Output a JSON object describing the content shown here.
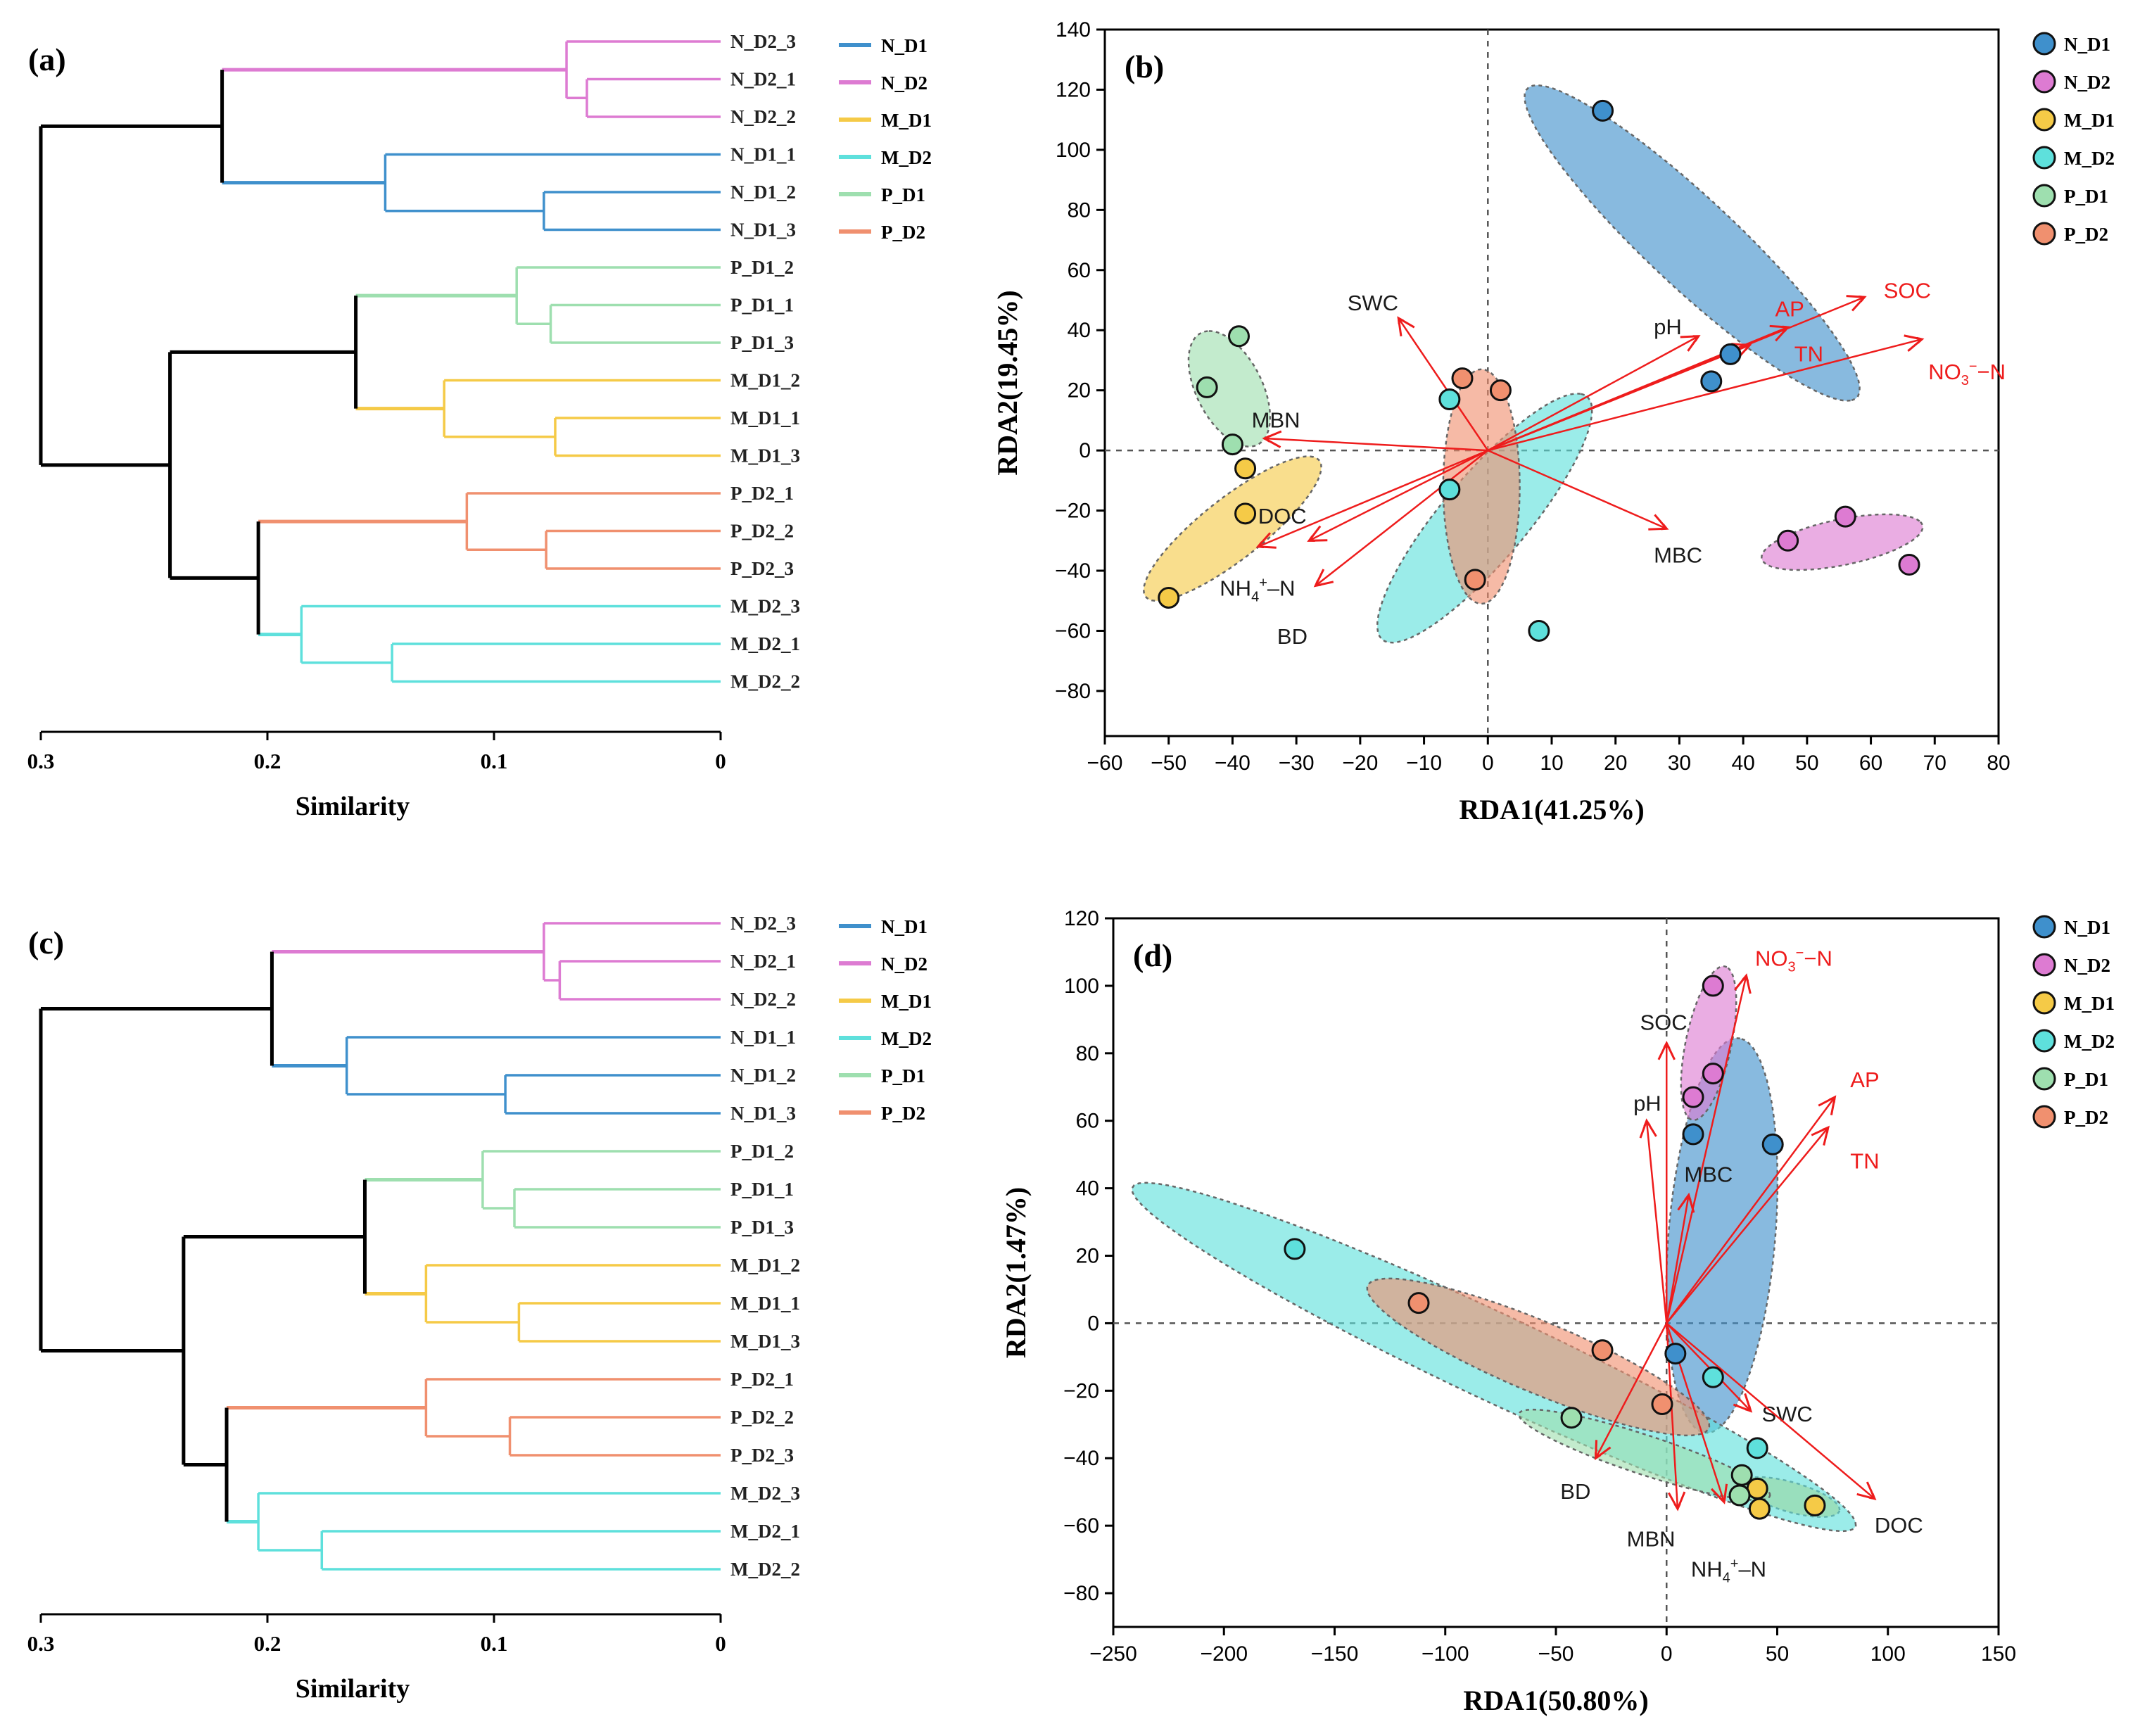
{
  "chart_data": [
    {
      "panel": "(a)",
      "type": "dendrogram",
      "xlabel": "Similarity",
      "x_ticks": [
        "0.3",
        "0.2",
        "0.1",
        "0"
      ],
      "xlim": [
        0.3,
        0
      ],
      "leaves": [
        "N_D2_3",
        "N_D2_1",
        "N_D2_2",
        "N_D1_1",
        "N_D1_2",
        "N_D1_3",
        "P_D1_2",
        "P_D1_1",
        "P_D1_3",
        "M_D1_2",
        "M_D1_1",
        "M_D1_3",
        "P_D2_1",
        "P_D2_2",
        "P_D2_3",
        "M_D2_3",
        "M_D2_1",
        "M_D2_2"
      ],
      "merges": [
        {
          "g": "N_D2",
          "a": 1,
          "b": 2,
          "h": 0.059,
          "id": "n1"
        },
        {
          "g": "N_D2",
          "a": 0,
          "b": "n1",
          "h": 0.068,
          "id": "n2"
        },
        {
          "g": "N_D1",
          "a": 4,
          "b": 5,
          "h": 0.078,
          "id": "n3"
        },
        {
          "g": "N_D1",
          "a": 3,
          "b": "n3",
          "h": 0.148,
          "id": "n4"
        },
        {
          "g": "root",
          "a": "n2",
          "b": "n4",
          "h": 0.22,
          "id": "n5"
        },
        {
          "g": "P_D1",
          "a": 7,
          "b": 8,
          "h": 0.075,
          "id": "n6"
        },
        {
          "g": "P_D1",
          "a": 6,
          "b": "n6",
          "h": 0.09,
          "id": "n7"
        },
        {
          "g": "M_D1",
          "a": 10,
          "b": 11,
          "h": 0.073,
          "id": "n8"
        },
        {
          "g": "M_D1",
          "a": 9,
          "b": "n8",
          "h": 0.122,
          "id": "n9"
        },
        {
          "g": "root",
          "a": "n7",
          "b": "n9",
          "h": 0.161,
          "id": "n10"
        },
        {
          "g": "P_D2",
          "a": 13,
          "b": 14,
          "h": 0.077,
          "id": "n11"
        },
        {
          "g": "P_D2",
          "a": 12,
          "b": "n11",
          "h": 0.112,
          "id": "n12"
        },
        {
          "g": "M_D2",
          "a": 16,
          "b": 17,
          "h": 0.145,
          "id": "n13"
        },
        {
          "g": "M_D2",
          "a": 15,
          "b": "n13",
          "h": 0.185,
          "id": "n14"
        },
        {
          "g": "root",
          "a": "n12",
          "b": "n14",
          "h": 0.204,
          "id": "n15"
        },
        {
          "g": "root",
          "a": "n10",
          "b": "n15",
          "h": 0.243,
          "id": "n16"
        },
        {
          "g": "root",
          "a": "n5",
          "b": "n16",
          "h": 0.3,
          "id": "n17"
        }
      ],
      "legend": [
        "N_D1",
        "N_D2",
        "M_D1",
        "M_D2",
        "P_D1",
        "P_D2"
      ]
    },
    {
      "panel": "(b)",
      "type": "scatter",
      "xlabel": "RDA1(41.25%)",
      "ylabel": "RDA2(19.45%)",
      "xlim": [
        -60,
        80
      ],
      "ylim": [
        -95,
        140
      ],
      "x_ticks": [
        -60,
        -50,
        -40,
        -30,
        -20,
        -10,
        0,
        10,
        20,
        30,
        40,
        50,
        60,
        70,
        80
      ],
      "y_ticks": [
        -80,
        -60,
        -40,
        -20,
        0,
        20,
        40,
        60,
        80,
        100,
        120,
        140
      ],
      "series": [
        {
          "name": "N_D1",
          "points": [
            [
              18,
              113
            ],
            [
              38,
              32
            ],
            [
              35,
              23
            ]
          ]
        },
        {
          "name": "N_D2",
          "points": [
            [
              47,
              -30
            ],
            [
              56,
              -22
            ],
            [
              66,
              -38
            ]
          ]
        },
        {
          "name": "M_D1",
          "points": [
            [
              -38,
              -6
            ],
            [
              -38,
              -21
            ],
            [
              -50,
              -49
            ]
          ]
        },
        {
          "name": "M_D2",
          "points": [
            [
              -6,
              17
            ],
            [
              -6,
              -13
            ],
            [
              8,
              -60
            ]
          ]
        },
        {
          "name": "P_D1",
          "points": [
            [
              -44,
              21
            ],
            [
              -39,
              38
            ],
            [
              -40,
              2
            ]
          ]
        },
        {
          "name": "P_D2",
          "points": [
            [
              -4,
              24
            ],
            [
              2,
              20
            ],
            [
              -2,
              -43
            ]
          ]
        }
      ],
      "ellipses": [
        {
          "group": "N_D1",
          "cx": 32,
          "cy": 69,
          "rx": 58,
          "ry": 9,
          "angle": -64.5
        },
        {
          "group": "N_D2",
          "cx": 55.5,
          "cy": -30.5,
          "rx": 14,
          "ry": 7,
          "angle": 30
        },
        {
          "group": "M_D1",
          "cx": -40,
          "cy": -26,
          "rx": 27,
          "ry": 6.5,
          "angle": 62
        },
        {
          "group": "M_D2",
          "cx": -0.5,
          "cy": -22.5,
          "rx": 44,
          "ry": 8,
          "angle": 70
        },
        {
          "group": "P_D1",
          "cx": -40.5,
          "cy": 20.5,
          "rx": 19.5,
          "ry": 5.5,
          "angle": 100
        },
        {
          "group": "P_D2",
          "cx": -1,
          "cy": -12,
          "rx": 39,
          "ry": 6,
          "angle": 90
        }
      ],
      "vectors": [
        {
          "name": "pH",
          "label": "pH",
          "x": 33,
          "y": 38,
          "lx": 26,
          "ly": 41,
          "color": "black"
        },
        {
          "name": "AP",
          "label": "AP",
          "x": 47,
          "y": 41,
          "lx": 45,
          "ly": 47,
          "color": "red"
        },
        {
          "name": "SOC",
          "label": "SOC",
          "x": 59,
          "y": 51,
          "lx": 62,
          "ly": 53,
          "color": "red"
        },
        {
          "name": "TN",
          "label": "TN",
          "x": 41,
          "y": 35,
          "lx": 48,
          "ly": 32,
          "color": "red"
        },
        {
          "name": "NO3",
          "label": "NO",
          "sub": "3",
          "sup": "−",
          "tail": "−N",
          "x": 68,
          "y": 37,
          "lx": 69,
          "ly": 26,
          "color": "red"
        },
        {
          "name": "SWC",
          "label": "SWC",
          "x": -14,
          "y": 44,
          "lx": -22,
          "ly": 49,
          "color": "black"
        },
        {
          "name": "MBN",
          "label": "MBN",
          "x": -35,
          "y": 4,
          "lx": -37,
          "ly": 10,
          "color": "black"
        },
        {
          "name": "MBC",
          "label": "MBC",
          "x": 28,
          "y": -26,
          "lx": 26,
          "ly": -35,
          "color": "black"
        },
        {
          "name": "DOC",
          "label": "DOC",
          "x": -36,
          "y": -32,
          "lx": -36,
          "ly": -22,
          "color": "black"
        },
        {
          "name": "NH4",
          "label": "NH",
          "sub": "4",
          "sup": "+",
          "tail": "–N",
          "x": -28,
          "y": -30,
          "lx": -42,
          "ly": -46,
          "color": "black"
        },
        {
          "name": "BD",
          "label": "BD",
          "x": -27,
          "y": -45,
          "lx": -33,
          "ly": -62,
          "color": "black"
        }
      ],
      "legend": [
        "N_D1",
        "N_D2",
        "M_D1",
        "M_D2",
        "P_D1",
        "P_D2"
      ]
    },
    {
      "panel": "(c)",
      "type": "dendrogram",
      "xlabel": "Similarity",
      "x_ticks": [
        "0.3",
        "0.2",
        "0.1",
        "0"
      ],
      "xlim": [
        0.3,
        0
      ],
      "leaves": [
        "N_D2_3",
        "N_D2_1",
        "N_D2_2",
        "N_D1_1",
        "N_D1_2",
        "N_D1_3",
        "P_D1_2",
        "P_D1_1",
        "P_D1_3",
        "M_D1_2",
        "M_D1_1",
        "M_D1_3",
        "P_D2_1",
        "P_D2_2",
        "P_D2_3",
        "M_D2_3",
        "M_D2_1",
        "M_D2_2"
      ],
      "merges": [
        {
          "g": "N_D2",
          "a": 1,
          "b": 2,
          "h": 0.071,
          "id": "n1"
        },
        {
          "g": "N_D2",
          "a": 0,
          "b": "n1",
          "h": 0.078,
          "id": "n2"
        },
        {
          "g": "N_D1",
          "a": 4,
          "b": 5,
          "h": 0.095,
          "id": "n3"
        },
        {
          "g": "N_D1",
          "a": 3,
          "b": "n3",
          "h": 0.165,
          "id": "n4"
        },
        {
          "g": "root",
          "a": "n2",
          "b": "n4",
          "h": 0.198,
          "id": "n5"
        },
        {
          "g": "P_D1",
          "a": 7,
          "b": 8,
          "h": 0.091,
          "id": "n6"
        },
        {
          "g": "P_D1",
          "a": 6,
          "b": "n6",
          "h": 0.105,
          "id": "n7"
        },
        {
          "g": "M_D1",
          "a": 10,
          "b": 11,
          "h": 0.089,
          "id": "n8"
        },
        {
          "g": "M_D1",
          "a": 9,
          "b": "n8",
          "h": 0.13,
          "id": "n9"
        },
        {
          "g": "root",
          "a": "n7",
          "b": "n9",
          "h": 0.157,
          "id": "n10"
        },
        {
          "g": "P_D2",
          "a": 13,
          "b": 14,
          "h": 0.093,
          "id": "n11"
        },
        {
          "g": "P_D2",
          "a": 12,
          "b": "n11",
          "h": 0.13,
          "id": "n12"
        },
        {
          "g": "M_D2",
          "a": 16,
          "b": 17,
          "h": 0.176,
          "id": "n13"
        },
        {
          "g": "M_D2",
          "a": 15,
          "b": "n13",
          "h": 0.204,
          "id": "n14"
        },
        {
          "g": "root",
          "a": "n12",
          "b": "n14",
          "h": 0.218,
          "id": "n15"
        },
        {
          "g": "root",
          "a": "n10",
          "b": "n15",
          "h": 0.237,
          "id": "n16"
        },
        {
          "g": "root",
          "a": "n5",
          "b": "n16",
          "h": 0.3,
          "id": "n17"
        }
      ],
      "legend": [
        "N_D1",
        "N_D2",
        "M_D1",
        "M_D2",
        "P_D1",
        "P_D2"
      ]
    },
    {
      "panel": "(d)",
      "type": "scatter",
      "xlabel": "RDA1(50.80%)",
      "ylabel": "RDA2(1.47%)",
      "xlim": [
        -250,
        150
      ],
      "ylim": [
        -90,
        120
      ],
      "x_ticks": [
        -250,
        -200,
        -150,
        -100,
        -50,
        0,
        50,
        100,
        150
      ],
      "y_ticks": [
        -80,
        -60,
        -40,
        -20,
        0,
        20,
        40,
        60,
        80,
        100,
        120
      ],
      "series": [
        {
          "name": "N_D1",
          "points": [
            [
              12,
              56
            ],
            [
              48,
              53
            ],
            [
              4,
              -9
            ]
          ]
        },
        {
          "name": "N_D2",
          "points": [
            [
              21,
              100
            ],
            [
              12,
              67
            ],
            [
              21,
              74
            ]
          ]
        },
        {
          "name": "M_D1",
          "points": [
            [
              41,
              -49
            ],
            [
              42,
              -55
            ],
            [
              67,
              -54
            ]
          ]
        },
        {
          "name": "M_D2",
          "points": [
            [
              -168,
              22
            ],
            [
              21,
              -16
            ],
            [
              41,
              -37
            ]
          ]
        },
        {
          "name": "P_D1",
          "points": [
            [
              -43,
              -28
            ],
            [
              34,
              -45
            ],
            [
              33,
              -51
            ]
          ]
        },
        {
          "name": "P_D2",
          "points": [
            [
              -112,
              6
            ],
            [
              -29,
              -8
            ],
            [
              -2,
              -24
            ]
          ]
        }
      ],
      "ellipses": [
        {
          "group": "N_D1",
          "cx": 25,
          "cy": 26,
          "rx": 59,
          "ry": 24,
          "angle": 82
        },
        {
          "group": "N_D2",
          "cx": 19,
          "cy": 83,
          "rx": 24,
          "ry": 10,
          "angle": 70
        },
        {
          "group": "M_D1",
          "cx": 56,
          "cy": -51.5,
          "rx": 22.5,
          "ry": 4.5,
          "angle": -10
        },
        {
          "group": "M_D2",
          "cx": -78,
          "cy": -10,
          "rx": 171,
          "ry": 13.5,
          "angle": -17
        },
        {
          "group": "P_D1",
          "cx": -10,
          "cy": -39,
          "rx": 58,
          "ry": 6,
          "angle": -12
        },
        {
          "group": "P_D2",
          "cx": -58,
          "cy": -10,
          "rx": 80,
          "ry": 11,
          "angle": -15
        }
      ],
      "vectors": [
        {
          "name": "NO3",
          "label": "NO",
          "sub": "3",
          "sup": "−",
          "tail": "−N",
          "x": 36,
          "y": 103,
          "lx": 40,
          "ly": 108,
          "color": "red"
        },
        {
          "name": "SOC",
          "label": "SOC",
          "x": 0,
          "y": 83,
          "lx": -12,
          "ly": 89,
          "color": "black"
        },
        {
          "name": "pH",
          "label": "pH",
          "x": -9,
          "y": 60,
          "lx": -15,
          "ly": 65,
          "color": "black"
        },
        {
          "name": "AP",
          "label": "AP",
          "x": 76,
          "y": 67,
          "lx": 83,
          "ly": 72,
          "color": "red"
        },
        {
          "name": "TN",
          "label": "TN",
          "x": 73,
          "y": 58,
          "lx": 83,
          "ly": 48,
          "color": "red"
        },
        {
          "name": "MBC",
          "label": "MBC",
          "x": 10,
          "y": 38,
          "lx": 8,
          "ly": 44,
          "color": "black"
        },
        {
          "name": "SWC",
          "label": "SWC",
          "x": 38,
          "y": -26,
          "lx": 43,
          "ly": -27,
          "color": "black"
        },
        {
          "name": "DOC",
          "label": "DOC",
          "x": 94,
          "y": -52,
          "lx": 94,
          "ly": -60,
          "color": "black"
        },
        {
          "name": "MBN",
          "label": "MBN",
          "x": 26,
          "y": -53,
          "lx": -18,
          "ly": -64,
          "color": "black"
        },
        {
          "name": "NH4",
          "label": "NH",
          "sub": "4",
          "sup": "+",
          "tail": "–N",
          "x": 5,
          "y": -55,
          "lx": 11,
          "ly": -73,
          "color": "black"
        },
        {
          "name": "BD",
          "label": "BD",
          "x": -32,
          "y": -40,
          "lx": -48,
          "ly": -50,
          "color": "black"
        }
      ],
      "legend": [
        "N_D1",
        "N_D2",
        "M_D1",
        "M_D2",
        "P_D1",
        "P_D2"
      ]
    }
  ],
  "group_colors": {
    "N_D1": "#3f90cc",
    "N_D2": "#dd7bd2",
    "M_D1": "#f5ca47",
    "M_D2": "#5ee0dc",
    "P_D1": "#9edfaf",
    "P_D2": "#f0906f",
    "root": "#000000"
  },
  "arrow_colors": {
    "red": "#ee1c1c",
    "black": "#ee1c1c"
  },
  "label_colors": {
    "red": "#ee1c1c",
    "black": "#1a1a1a"
  }
}
